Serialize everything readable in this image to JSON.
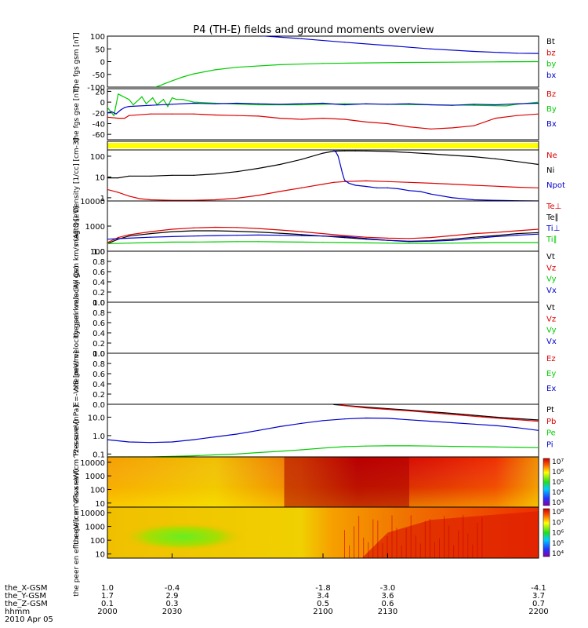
{
  "title": "P4 (TH-E) fields and ground moments overview",
  "colors": {
    "black": "#000000",
    "red": "#dd0000",
    "green": "#00cc00",
    "blue": "#0000cc",
    "yellow": "#ffff00"
  },
  "footer": {
    "row_labels": [
      "the_X-GSM",
      "the_Y-GSM",
      "the_Z-GSM",
      "hhmm",
      "2010 Apr 05"
    ],
    "columns": [
      [
        "1.0",
        "1.7",
        "0.1",
        "2000"
      ],
      [
        "-0.4",
        "2.9",
        "0.3",
        "2030"
      ],
      [
        "-1.8",
        "3.4",
        "0.5",
        "2100"
      ],
      [
        "-3.0",
        "3.6",
        "0.6",
        "2130"
      ],
      [
        "-4.1",
        "3.7",
        "0.7",
        "2200"
      ]
    ]
  },
  "colorbars": [
    {
      "labels": [
        "10⁷",
        "10⁶",
        "10⁵",
        "10⁴",
        "10³"
      ]
    },
    {
      "labels": [
        "10⁸",
        "10⁷",
        "10⁶",
        "10⁵",
        "10⁴"
      ]
    }
  ],
  "chart_data": [
    {
      "type": "line",
      "ylabel": "the fgs gsm [nT]",
      "ylim": [
        -100,
        100
      ],
      "yticks": [
        "100",
        "50",
        "0",
        "-50",
        "-100"
      ],
      "legend": [
        "Bt",
        "bz",
        "by",
        "bx"
      ],
      "series": [
        {
          "name": "bx",
          "color": "blue",
          "x": [
            2042,
            2048,
            2058,
            2070,
            2090,
            2110,
            2130,
            2150,
            2170,
            2190,
            2200
          ],
          "y": [
            120,
            115,
            109,
            102,
            90,
            76,
            63,
            50,
            40,
            33,
            32
          ]
        },
        {
          "name": "by",
          "color": "green",
          "x": [
            2022,
            2024,
            2027,
            2030,
            2035,
            2040,
            2050,
            2060,
            2080,
            2100,
            2120,
            2140,
            2160,
            2180,
            2200
          ],
          "y": [
            -100,
            -95,
            -85,
            -75,
            -60,
            -48,
            -32,
            -22,
            -12,
            -7,
            -5,
            -3,
            -2,
            -1,
            0
          ]
        }
      ]
    },
    {
      "type": "line",
      "ylabel": "the fgs gse [nT]",
      "ylim": [
        -70,
        25
      ],
      "yticks": [
        "20",
        "0",
        "-20",
        "-40",
        "-60"
      ],
      "legend": [
        "Bz",
        "By",
        "Bx"
      ],
      "series": [
        {
          "name": "By",
          "color": "green",
          "x": [
            2000,
            2003,
            2005,
            2010,
            2012,
            2016,
            2018,
            2021,
            2023,
            2026,
            2028,
            2030,
            2032,
            2035,
            2040,
            2050,
            2070,
            2090,
            2110,
            2130,
            2150,
            2170,
            2185,
            2190,
            2200
          ],
          "y": [
            -10,
            -25,
            15,
            5,
            -5,
            10,
            -3,
            8,
            -5,
            5,
            -8,
            8,
            5,
            5,
            0,
            -2,
            -5,
            -5,
            -3,
            -4,
            -5,
            -6,
            -7,
            -4,
            0
          ]
        },
        {
          "name": "Bx",
          "color": "blue",
          "x": [
            2000,
            2002,
            2004,
            2006,
            2008,
            2010,
            2020,
            2030,
            2040,
            2050,
            2060,
            2070,
            2080,
            2090,
            2100,
            2110,
            2120,
            2130,
            2140,
            2150,
            2160,
            2170,
            2180,
            2190,
            2200
          ],
          "y": [
            -20,
            -18,
            -22,
            -15,
            -10,
            -8,
            -6,
            -4,
            -2,
            -3,
            -2,
            -3,
            -4,
            -3,
            -2,
            -5,
            -3,
            -4,
            -3,
            -5,
            -6,
            -4,
            -5,
            -3,
            -2
          ]
        },
        {
          "name": "Bz",
          "color": "red",
          "x": [
            2000,
            2005,
            2008,
            2010,
            2020,
            2030,
            2040,
            2050,
            2060,
            2070,
            2080,
            2090,
            2100,
            2110,
            2120,
            2130,
            2140,
            2150,
            2160,
            2170,
            2180,
            2190,
            2200
          ],
          "y": [
            -28,
            -30,
            -30,
            -25,
            -22,
            -22,
            -22,
            -24,
            -25,
            -26,
            -30,
            -32,
            -30,
            -32,
            -37,
            -40,
            -46,
            -50,
            -48,
            -44,
            -30,
            -25,
            -22
          ]
        }
      ]
    },
    {
      "type": "line",
      "ylabel": "Density [1/cc] [cm-3]",
      "ylog": true,
      "ylim": [
        0.7,
        200
      ],
      "yticks": [
        "100",
        "10",
        "1"
      ],
      "legend": [
        "Ne",
        "Ni",
        "Npot"
      ],
      "series": [
        {
          "name": "Ni",
          "color": "black",
          "x": [
            2000,
            2005,
            2010,
            2020,
            2030,
            2040,
            2050,
            2060,
            2070,
            2080,
            2090,
            2100,
            2105,
            2110,
            2115,
            2120,
            2130,
            2140,
            2150,
            2160,
            2170,
            2180,
            2190,
            2200
          ],
          "y": [
            9,
            9,
            11,
            11,
            12,
            12,
            14,
            18,
            26,
            40,
            70,
            140,
            175,
            180,
            180,
            178,
            170,
            150,
            130,
            110,
            95,
            75,
            55,
            40
          ]
        },
        {
          "name": "Ne",
          "color": "red",
          "x": [
            2000,
            2005,
            2010,
            2015,
            2020,
            2030,
            2040,
            2050,
            2060,
            2070,
            2080,
            2090,
            2100,
            2105,
            2110,
            2120,
            2130,
            2140,
            2150,
            2160,
            2170,
            2180,
            2190,
            2200
          ],
          "y": [
            2.5,
            1.8,
            1.2,
            0.9,
            0.8,
            0.75,
            0.75,
            0.8,
            0.95,
            1.3,
            2,
            3,
            4.5,
            5.5,
            6,
            6.5,
            6,
            5.5,
            5,
            4.5,
            4,
            3.6,
            3.2,
            3
          ]
        },
        {
          "name": "Npot",
          "color": "blue",
          "x": [
            2105,
            2106,
            2107,
            2108,
            2109,
            2110,
            2112,
            2115,
            2120,
            2125,
            2130,
            2135,
            2140,
            2145,
            2150,
            2160,
            2170,
            2180,
            2190,
            2200
          ],
          "y": [
            180,
            160,
            100,
            40,
            15,
            7,
            5,
            4,
            3.5,
            3,
            3,
            2.7,
            2.2,
            2,
            1.5,
            1,
            0.8,
            0.75,
            0.72,
            0.7
          ]
        }
      ]
    },
    {
      "type": "line",
      "ylabel": "magt3 [eV]",
      "ylog": true,
      "ylim": [
        100,
        10000
      ],
      "yticks": [
        "10000",
        "1000",
        "100"
      ],
      "legend": [
        "Te⊥",
        "Te∥",
        "Ti⊥",
        "Ti∥"
      ],
      "series": [
        {
          "name": "Te⊥",
          "color": "red",
          "x": [
            2000,
            2005,
            2010,
            2020,
            2030,
            2040,
            2050,
            2060,
            2070,
            2080,
            2090,
            2100,
            2110,
            2120,
            2130,
            2140,
            2150,
            2160,
            2170,
            2180,
            2190,
            2200
          ],
          "y": [
            220,
            350,
            450,
            600,
            750,
            850,
            900,
            880,
            800,
            700,
            600,
            500,
            420,
            360,
            330,
            320,
            350,
            420,
            500,
            560,
            650,
            750
          ]
        },
        {
          "name": "Te∥",
          "color": "black",
          "x": [
            2000,
            2005,
            2010,
            2020,
            2030,
            2040,
            2050,
            2060,
            2070,
            2080,
            2090,
            2100,
            2110,
            2120,
            2130,
            2140,
            2150,
            2160,
            2170,
            2180,
            2190,
            2200
          ],
          "y": [
            200,
            300,
            400,
            500,
            600,
            650,
            650,
            620,
            580,
            520,
            460,
            400,
            350,
            300,
            270,
            250,
            260,
            300,
            360,
            420,
            500,
            550
          ]
        },
        {
          "name": "Ti⊥",
          "color": "blue",
          "x": [
            2000,
            2010,
            2020,
            2030,
            2040,
            2050,
            2060,
            2070,
            2080,
            2090,
            2100,
            2110,
            2120,
            2130,
            2140,
            2150,
            2160,
            2170,
            2180,
            2190,
            2200
          ],
          "y": [
            300,
            330,
            360,
            380,
            400,
            420,
            430,
            440,
            430,
            420,
            400,
            380,
            320,
            270,
            240,
            250,
            270,
            320,
            380,
            430,
            480
          ]
        },
        {
          "name": "Ti∥",
          "color": "green",
          "x": [
            2000,
            2010,
            2020,
            2030,
            2040,
            2050,
            2060,
            2070,
            2080,
            2090,
            2100,
            2110,
            2120,
            2130,
            2140,
            2150,
            2160,
            2170,
            2180,
            2190,
            2200
          ],
          "y": [
            200,
            210,
            220,
            230,
            230,
            235,
            240,
            240,
            235,
            230,
            225,
            220,
            215,
            210,
            205,
            205,
            210,
            215,
            220,
            220,
            220
          ]
        }
      ]
    },
    {
      "type": "line",
      "ylabel": "the peir velocity gsm km/s (All Qs)",
      "ylim": [
        0,
        1
      ],
      "yticks": [
        "1.0",
        "0.8",
        "0.6",
        "0.4",
        "0.2",
        "0.0"
      ],
      "legend": [
        "Vt",
        "Vz",
        "Vy",
        "Vx"
      ],
      "series": []
    },
    {
      "type": "line",
      "ylabel": "the peer velocity gsm km/s (All Qs)",
      "ylim": [
        0,
        1
      ],
      "yticks": [
        "1.0",
        "0.8",
        "0.6",
        "0.4",
        "0.2",
        "0.0"
      ],
      "legend": [
        "Vt",
        "Vz",
        "Vy",
        "Vx"
      ],
      "series": []
    },
    {
      "type": "line",
      "ylabel": "E=-VxB [mV/m]",
      "ylim": [
        0,
        1
      ],
      "yticks": [
        "1.0",
        "0.8",
        "0.6",
        "0.4",
        "0.2",
        "0.0"
      ],
      "legend": [
        "Ez",
        "Ey",
        "Ex"
      ],
      "series": []
    },
    {
      "type": "line",
      "ylabel": "Pressure [nPa]",
      "ylog": true,
      "ylim": [
        0.07,
        50
      ],
      "yticks": [
        "10.0",
        "1.0",
        "0.1"
      ],
      "legend": [
        "Pt",
        "Pb",
        "Pe",
        "Pi"
      ],
      "series": [
        {
          "name": "Pt",
          "color": "black",
          "x": [
            2105,
            2120,
            2140,
            2160,
            2180,
            2200
          ],
          "y": [
            48,
            35,
            24,
            16,
            10,
            7
          ]
        },
        {
          "name": "Pb",
          "color": "red",
          "x": [
            2108,
            2120,
            2140,
            2160,
            2180,
            2200
          ],
          "y": [
            45,
            32,
            22,
            14,
            9,
            6
          ]
        },
        {
          "name": "Pi",
          "color": "blue",
          "x": [
            2000,
            2010,
            2020,
            2030,
            2040,
            2050,
            2060,
            2070,
            2080,
            2090,
            2100,
            2110,
            2120,
            2130,
            2140,
            2150,
            2160,
            2170,
            2180,
            2190,
            2200
          ],
          "y": [
            0.6,
            0.45,
            0.42,
            0.45,
            0.6,
            0.85,
            1.2,
            1.9,
            3.1,
            4.6,
            6.5,
            8,
            9,
            8.6,
            7.2,
            6,
            5,
            4.2,
            3.5,
            2.7,
            1.9
          ]
        },
        {
          "name": "Pe",
          "color": "green",
          "x": [
            2000,
            2010,
            2020,
            2030,
            2040,
            2050,
            2060,
            2070,
            2080,
            2090,
            2100,
            2110,
            2120,
            2130,
            2140,
            2150,
            2160,
            2170,
            2180,
            2190,
            2200
          ],
          "y": [
            0.07,
            0.07,
            0.07,
            0.075,
            0.08,
            0.09,
            0.1,
            0.12,
            0.14,
            0.17,
            0.21,
            0.25,
            0.27,
            0.28,
            0.28,
            0.27,
            0.26,
            0.25,
            0.24,
            0.23,
            0.22
          ]
        }
      ]
    },
    {
      "type": "heatmap",
      "ylabel": "the peir en eflux eV/(cm^2-s-sr-eV)",
      "ylog": true,
      "yticks": [
        "10000",
        "1000",
        "100",
        "10"
      ]
    },
    {
      "type": "heatmap",
      "ylabel": "the peer en eflux eV/(cm^2-s-sr-eV)",
      "ylog": true,
      "yticks": [
        "10000",
        "1000",
        "100",
        "10"
      ]
    }
  ]
}
